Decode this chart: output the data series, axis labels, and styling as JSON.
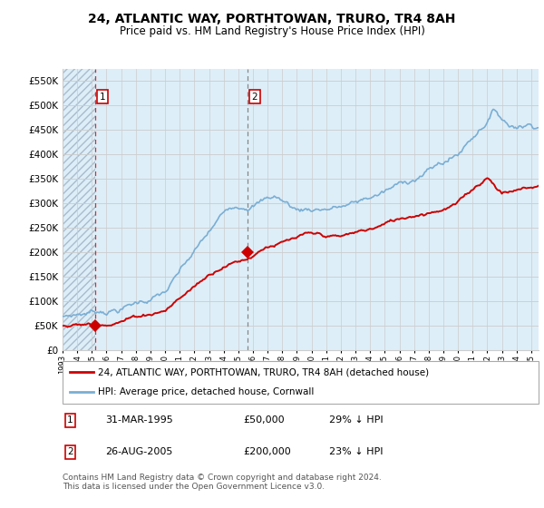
{
  "title": "24, ATLANTIC WAY, PORTHTOWAN, TRURO, TR4 8AH",
  "subtitle": "Price paid vs. HM Land Registry's House Price Index (HPI)",
  "legend_line1": "24, ATLANTIC WAY, PORTHTOWAN, TRURO, TR4 8AH (detached house)",
  "legend_line2": "HPI: Average price, detached house, Cornwall",
  "footnote": "Contains HM Land Registry data © Crown copyright and database right 2024.\nThis data is licensed under the Open Government Licence v3.0.",
  "transaction1_date": "31-MAR-1995",
  "transaction1_price": "£50,000",
  "transaction1_hpi": "29% ↓ HPI",
  "transaction2_date": "26-AUG-2005",
  "transaction2_price": "£200,000",
  "transaction2_hpi": "23% ↓ HPI",
  "price_color": "#cc0000",
  "hpi_color": "#7aaed4",
  "grid_color": "#cccccc",
  "ylim": [
    0,
    575000
  ],
  "yticks": [
    0,
    50000,
    100000,
    150000,
    200000,
    250000,
    300000,
    350000,
    400000,
    450000,
    500000,
    550000
  ],
  "transaction1_x": 1995.25,
  "transaction1_y": 50000,
  "transaction2_x": 2005.65,
  "transaction2_y": 200000,
  "xmin": 1993,
  "xmax": 2025.5
}
